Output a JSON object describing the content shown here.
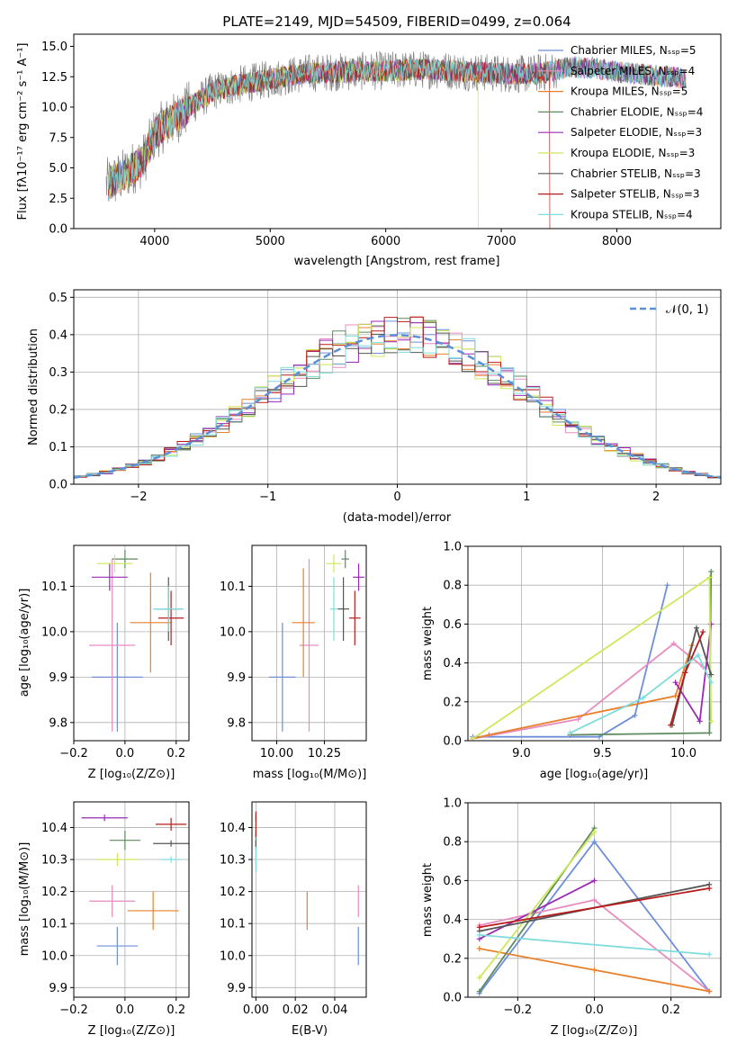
{
  "colors": {
    "chabrier_miles": "#6c8fd8",
    "salpeter_miles": "#e88cc0",
    "kroupa_miles": "#e8802c",
    "chabrier_elodie": "#5f8a5f",
    "salpeter_elodie": "#9a2ab5",
    "kroupa_elodie": "#cde85a",
    "chabrier_stelib": "#555555",
    "salpeter_stelib": "#b81c1c",
    "kroupa_stelib": "#7fdcdc",
    "gray_spectrum": "#808080",
    "normal_curve": "#5b8fd8",
    "grid": "#b0b0b0"
  },
  "chart_data": [
    {
      "id": "spectrum",
      "type": "line",
      "title": "PLATE=2149, MJD=54509, FIBERID=0499, z=0.064",
      "xlabel": "wavelength [Angstrom, rest frame]",
      "ylabel": "Flux [fλ10⁻¹⁷ erg cm⁻² s⁻¹ A⁻¹]",
      "xlim": [
        3300,
        8900
      ],
      "ylim": [
        0,
        16
      ],
      "xticks": [
        "4000",
        "5000",
        "6000",
        "7000",
        "8000"
      ],
      "yticks": [
        "0.0",
        "2.5",
        "5.0",
        "7.5",
        "10.0",
        "12.5",
        "15.0"
      ],
      "continuum_x": [
        3580,
        3700,
        3800,
        3900,
        4000,
        4100,
        4200,
        4300,
        4500,
        4700,
        5000,
        5300,
        5600,
        6000,
        6300,
        6600,
        6900,
        7200,
        7400,
        7600,
        7800,
        8000,
        8300,
        8600
      ],
      "continuum_y": [
        3.6,
        4.2,
        4.9,
        5.6,
        7.8,
        8.6,
        9.2,
        10.0,
        11.3,
        11.8,
        12.3,
        12.8,
        12.9,
        13.0,
        13.1,
        13.0,
        12.8,
        12.7,
        12.9,
        13.3,
        13.2,
        12.9,
        12.6,
        12.4
      ],
      "legend": [
        {
          "label": "Chabrier MILES, Nₛₛₚ=5",
          "color": "#6c8fd8"
        },
        {
          "label": "Salpeter MILES, Nₛₛₚ=4",
          "color": "#e88cc0"
        },
        {
          "label": "Kroupa MILES, Nₛₛₚ=5",
          "color": "#e8802c"
        },
        {
          "label": "Chabrier ELODIE, Nₛₛₚ=4",
          "color": "#5f8a5f"
        },
        {
          "label": "Salpeter ELODIE, Nₛₛₚ=3",
          "color": "#9a2ab5"
        },
        {
          "label": "Kroupa ELODIE, Nₛₛₚ=3",
          "color": "#cde85a"
        },
        {
          "label": "Chabrier STELIB, Nₛₛₚ=3",
          "color": "#555555"
        },
        {
          "label": "Salpeter STELIB, Nₛₛₚ=3",
          "color": "#b81c1c"
        },
        {
          "label": "Kroupa STELIB, Nₛₛₚ=4",
          "color": "#7fdcdc"
        }
      ],
      "legend_placement": "top-right"
    },
    {
      "id": "residuals",
      "type": "line",
      "xlabel": "(data-model)/error",
      "ylabel": "Normed distribution",
      "xlim": [
        -2.5,
        2.5
      ],
      "ylim": [
        0,
        0.52
      ],
      "xticks": [
        "−2",
        "−1",
        "0",
        "1",
        "2"
      ],
      "yticks": [
        "0.0",
        "0.1",
        "0.2",
        "0.3",
        "0.4",
        "0.5"
      ],
      "grid": true,
      "legend_label": "𝒩(0, 1)",
      "legend_placement": "top-right"
    },
    {
      "id": "age_vs_Z",
      "type": "scatter",
      "xlabel": "Z [log₁₀(Z/Z⊙)]",
      "ylabel": "age  [log₁₀(age/yr)]",
      "xlim": [
        -0.2,
        0.25
      ],
      "ylim": [
        9.76,
        10.19
      ],
      "xticks": [
        "−0.2",
        "0.0",
        "0.2"
      ],
      "yticks": [
        "9.8",
        "9.9",
        "10.0",
        "10.1"
      ],
      "points": [
        {
          "name": "Chabrier MILES",
          "x": -0.03,
          "xerr": 0.1,
          "y": 9.9,
          "yerr": 0.12,
          "color": "#6c8fd8"
        },
        {
          "name": "Salpeter MILES",
          "x": -0.05,
          "xerr": 0.09,
          "y": 9.97,
          "yerr": 0.19,
          "color": "#e88cc0"
        },
        {
          "name": "Kroupa MILES",
          "x": 0.1,
          "xerr": 0.08,
          "y": 10.02,
          "yerr": 0.11,
          "color": "#e8802c"
        },
        {
          "name": "Chabrier ELODIE",
          "x": 0.0,
          "xerr": 0.05,
          "y": 10.16,
          "yerr": 0.02,
          "color": "#5f8a5f"
        },
        {
          "name": "Salpeter ELODIE",
          "x": -0.06,
          "xerr": 0.07,
          "y": 10.12,
          "yerr": 0.03,
          "color": "#9a2ab5"
        },
        {
          "name": "Kroupa ELODIE",
          "x": -0.04,
          "xerr": 0.07,
          "y": 10.15,
          "yerr": 0.02,
          "color": "#cde85a"
        },
        {
          "name": "Chabrier STELIB",
          "x": 0.17,
          "xerr": 0.05,
          "y": 10.05,
          "yerr": 0.07,
          "color": "#555555"
        },
        {
          "name": "Salpeter STELIB",
          "x": 0.18,
          "xerr": 0.05,
          "y": 10.03,
          "yerr": 0.06,
          "color": "#b81c1c"
        },
        {
          "name": "Kroupa STELIB",
          "x": 0.17,
          "xerr": 0.06,
          "y": 10.05,
          "yerr": 0.05,
          "color": "#7fdcdc"
        }
      ]
    },
    {
      "id": "age_vs_mass",
      "type": "scatter",
      "xlabel": "mass [log₁₀(M/M⊙)]",
      "xlim": [
        9.87,
        10.47
      ],
      "ylim": [
        9.76,
        10.19
      ],
      "xticks": [
        "10.00",
        "10.25"
      ],
      "yticks": [
        "9.8",
        "9.9",
        "10.0",
        "10.1"
      ],
      "points": [
        {
          "name": "Chabrier MILES",
          "x": 10.03,
          "xerr": 0.07,
          "y": 9.9,
          "yerr": 0.12,
          "color": "#6c8fd8"
        },
        {
          "name": "Salpeter MILES",
          "x": 10.17,
          "xerr": 0.05,
          "y": 9.97,
          "yerr": 0.19,
          "color": "#e88cc0"
        },
        {
          "name": "Kroupa MILES",
          "x": 10.14,
          "xerr": 0.06,
          "y": 10.02,
          "yerr": 0.12,
          "color": "#e8802c"
        },
        {
          "name": "Chabrier ELODIE",
          "x": 10.36,
          "xerr": 0.02,
          "y": 10.16,
          "yerr": 0.02,
          "color": "#5f8a5f"
        },
        {
          "name": "Salpeter ELODIE",
          "x": 10.43,
          "xerr": 0.03,
          "y": 10.12,
          "yerr": 0.03,
          "color": "#9a2ab5"
        },
        {
          "name": "Kroupa ELODIE",
          "x": 10.3,
          "xerr": 0.04,
          "y": 10.15,
          "yerr": 0.02,
          "color": "#cde85a"
        },
        {
          "name": "Chabrier STELIB",
          "x": 10.35,
          "xerr": 0.03,
          "y": 10.05,
          "yerr": 0.07,
          "color": "#555555"
        },
        {
          "name": "Salpeter STELIB",
          "x": 10.41,
          "xerr": 0.03,
          "y": 10.03,
          "yerr": 0.06,
          "color": "#b81c1c"
        },
        {
          "name": "Kroupa STELIB",
          "x": 10.3,
          "xerr": 0.02,
          "y": 10.05,
          "yerr": 0.07,
          "color": "#7fdcdc"
        }
      ]
    },
    {
      "id": "weight_vs_age",
      "type": "line",
      "xlabel": "age  [log₁₀(age/yr)]",
      "ylabel": "mass weight",
      "xlim": [
        8.67,
        10.23
      ],
      "ylim": [
        0,
        1
      ],
      "xticks": [
        "9.0",
        "9.5",
        "10.0"
      ],
      "yticks": [
        "0.0",
        "0.2",
        "0.4",
        "0.6",
        "0.8",
        "1.0"
      ],
      "series": [
        {
          "color": "#6c8fd8",
          "x": [
            8.7,
            9.48,
            9.7,
            9.9
          ],
          "y": [
            0.02,
            0.02,
            0.13,
            0.8
          ]
        },
        {
          "color": "#e88cc0",
          "x": [
            8.7,
            9.35,
            9.94,
            10.12
          ],
          "y": [
            0.01,
            0.11,
            0.5,
            0.38
          ]
        },
        {
          "color": "#e8802c",
          "x": [
            8.7,
            8.8,
            9.95,
            10.05
          ],
          "y": [
            0.01,
            0.03,
            0.23,
            0.49
          ]
        },
        {
          "color": "#5f8a5f",
          "x": [
            9.3,
            10.16,
            10.17
          ],
          "y": [
            0.03,
            0.04,
            0.87
          ]
        },
        {
          "color": "#9a2ab5",
          "x": [
            9.95,
            10.1,
            10.17
          ],
          "y": [
            0.3,
            0.1,
            0.6
          ]
        },
        {
          "color": "#cde85a",
          "x": [
            8.7,
            10.16,
            10.17
          ],
          "y": [
            0.01,
            0.84,
            0.1
          ]
        },
        {
          "color": "#555555",
          "x": [
            9.93,
            10.08,
            10.17
          ],
          "y": [
            0.08,
            0.58,
            0.34
          ]
        },
        {
          "color": "#b81c1c",
          "x": [
            9.92,
            10.01,
            10.12
          ],
          "y": [
            0.08,
            0.35,
            0.56
          ]
        },
        {
          "color": "#7fdcdc",
          "x": [
            9.3,
            9.75,
            10.09,
            10.17
          ],
          "y": [
            0.04,
            0.22,
            0.44,
            0.3
          ]
        }
      ]
    },
    {
      "id": "mass_vs_Z",
      "type": "scatter",
      "xlabel": "Z [log₁₀(Z/Z⊙)]",
      "ylabel": "mass [log₁₀(M/M⊙)]",
      "xlim": [
        -0.2,
        0.25
      ],
      "ylim": [
        9.87,
        10.48
      ],
      "xticks": [
        "−0.2",
        "0.0",
        "0.2"
      ],
      "yticks": [
        "9.9",
        "10.0",
        "10.1",
        "10.2",
        "10.3",
        "10.4"
      ],
      "points": [
        {
          "name": "Chabrier MILES",
          "x": -0.03,
          "xerr": 0.08,
          "y": 10.03,
          "yerr": 0.06,
          "color": "#6c8fd8"
        },
        {
          "name": "Salpeter MILES",
          "x": -0.05,
          "xerr": 0.09,
          "y": 10.17,
          "yerr": 0.05,
          "color": "#e88cc0"
        },
        {
          "name": "Kroupa MILES",
          "x": 0.11,
          "xerr": 0.1,
          "y": 10.14,
          "yerr": 0.06,
          "color": "#e8802c"
        },
        {
          "name": "Chabrier ELODIE",
          "x": 0.0,
          "xerr": 0.06,
          "y": 10.36,
          "yerr": 0.03,
          "color": "#5f8a5f"
        },
        {
          "name": "Salpeter ELODIE",
          "x": -0.08,
          "xerr": 0.09,
          "y": 10.43,
          "yerr": 0.01,
          "color": "#9a2ab5"
        },
        {
          "name": "Kroupa ELODIE",
          "x": -0.03,
          "xerr": 0.08,
          "y": 10.3,
          "yerr": 0.02,
          "color": "#cde85a"
        },
        {
          "name": "Chabrier STELIB",
          "x": 0.18,
          "xerr": 0.07,
          "y": 10.35,
          "yerr": 0.01,
          "color": "#555555"
        },
        {
          "name": "Salpeter STELIB",
          "x": 0.18,
          "xerr": 0.06,
          "y": 10.41,
          "yerr": 0.02,
          "color": "#b81c1c"
        },
        {
          "name": "Kroupa STELIB",
          "x": 0.18,
          "xerr": 0.04,
          "y": 10.3,
          "yerr": 0.01,
          "color": "#7fdcdc"
        }
      ]
    },
    {
      "id": "mass_vs_ebv",
      "type": "scatter",
      "xlabel": "E(B-V)",
      "xlim": [
        -0.002,
        0.056
      ],
      "ylim": [
        9.87,
        10.48
      ],
      "xticks": [
        "0.00",
        "0.02",
        "0.04"
      ],
      "yticks": [
        "9.9",
        "10.0",
        "10.1",
        "10.2",
        "10.3",
        "10.4"
      ],
      "points": [
        {
          "name": "Chabrier MILES",
          "x": 0.052,
          "xerr": 0.0,
          "y": 10.03,
          "yerr": 0.06,
          "color": "#6c8fd8"
        },
        {
          "name": "Salpeter MILES",
          "x": 0.052,
          "xerr": 0.0,
          "y": 10.17,
          "yerr": 0.05,
          "color": "#e88cc0"
        },
        {
          "name": "Kroupa MILES",
          "x": 0.026,
          "xerr": 0.0,
          "y": 10.14,
          "yerr": 0.06,
          "color": "#e8802c"
        },
        {
          "name": "Chabrier ELODIE",
          "x": 0.0,
          "xerr": 0.0,
          "y": 10.36,
          "yerr": 0.03,
          "color": "#5f8a5f"
        },
        {
          "name": "Salpeter ELODIE",
          "x": 0.0,
          "xerr": 0.0,
          "y": 10.43,
          "yerr": 0.01,
          "color": "#9a2ab5"
        },
        {
          "name": "Kroupa ELODIE",
          "x": 0.0,
          "xerr": 0.0,
          "y": 10.3,
          "yerr": 0.02,
          "color": "#cde85a"
        },
        {
          "name": "Chabrier STELIB",
          "x": 0.0,
          "xerr": 0.0,
          "y": 10.35,
          "yerr": 0.01,
          "color": "#555555"
        },
        {
          "name": "Salpeter STELIB",
          "x": 0.0,
          "xerr": 0.0,
          "y": 10.41,
          "yerr": 0.04,
          "color": "#b81c1c"
        },
        {
          "name": "Kroupa STELIB",
          "x": 0.0,
          "xerr": 0.0,
          "y": 10.3,
          "yerr": 0.04,
          "color": "#7fdcdc"
        }
      ]
    },
    {
      "id": "weight_vs_Z",
      "type": "line",
      "xlabel": "Z [log₁₀(Z/Z⊙)]",
      "ylabel": "mass weight",
      "xlim": [
        -0.33,
        0.33
      ],
      "ylim": [
        0,
        1
      ],
      "xticks": [
        "−0.2",
        "0.0",
        "0.2"
      ],
      "yticks": [
        "0.0",
        "0.2",
        "0.4",
        "0.6",
        "0.8",
        "1.0"
      ],
      "series": [
        {
          "color": "#6c8fd8",
          "x": [
            -0.3,
            0.0,
            0.3
          ],
          "y": [
            0.02,
            0.8,
            0.03
          ]
        },
        {
          "color": "#e88cc0",
          "x": [
            -0.3,
            0.0,
            0.3
          ],
          "y": [
            0.37,
            0.5,
            0.03
          ]
        },
        {
          "color": "#e8802c",
          "x": [
            -0.3,
            0.0,
            0.3
          ],
          "y": [
            0.25,
            0.14,
            0.03
          ]
        },
        {
          "color": "#5f8a5f",
          "x": [
            -0.3,
            0.0
          ],
          "y": [
            0.03,
            0.87
          ]
        },
        {
          "color": "#9a2ab5",
          "x": [
            -0.3,
            0.0
          ],
          "y": [
            0.3,
            0.6
          ]
        },
        {
          "color": "#cde85a",
          "x": [
            -0.3,
            0.0
          ],
          "y": [
            0.1,
            0.85
          ]
        },
        {
          "color": "#555555",
          "x": [
            -0.3,
            0.3
          ],
          "y": [
            0.34,
            0.58
          ]
        },
        {
          "color": "#b81c1c",
          "x": [
            -0.3,
            0.3
          ],
          "y": [
            0.36,
            0.56
          ]
        },
        {
          "color": "#7fdcdc",
          "x": [
            -0.3,
            0.3
          ],
          "y": [
            0.32,
            0.22
          ]
        }
      ]
    }
  ]
}
